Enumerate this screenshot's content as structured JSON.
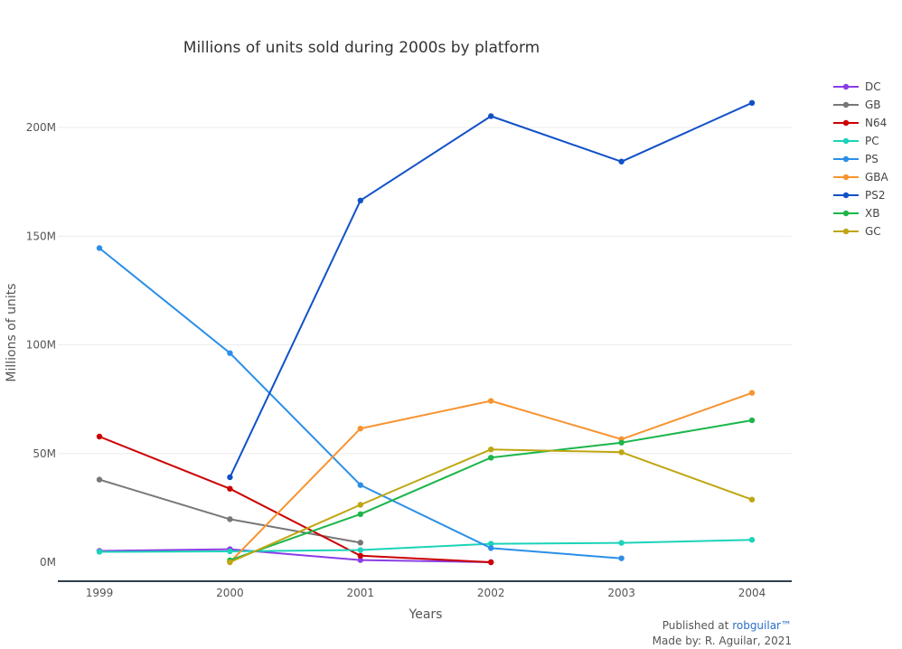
{
  "chart_data": {
    "type": "line",
    "title": "Millions of units sold during 2000s by platform",
    "xlabel": "Years",
    "ylabel": "Millions of units",
    "x": [
      1999,
      2000,
      2001,
      2002,
      2003,
      2004
    ],
    "x_tick_labels": [
      "1999",
      "2000",
      "2001",
      "2002",
      "2003",
      "2004"
    ],
    "ylim": [
      -8,
      225
    ],
    "y_ticks": [
      0,
      50,
      100,
      150,
      200
    ],
    "y_tick_labels": [
      "0M",
      "50M",
      "100M",
      "150M",
      "200M"
    ],
    "grid": true,
    "legend_position": "right",
    "series": [
      {
        "name": "DC",
        "color": "#8b3ee6",
        "points": [
          [
            1999,
            5.2
          ],
          [
            2000,
            6.0
          ],
          [
            2001,
            1.0
          ],
          [
            2002,
            0.0
          ]
        ]
      },
      {
        "name": "GB",
        "color": "#777777",
        "points": [
          [
            1999,
            38.0
          ],
          [
            2000,
            19.8
          ],
          [
            2001,
            9.0
          ]
        ]
      },
      {
        "name": "N64",
        "color": "#cc0000",
        "points": [
          [
            1999,
            57.8
          ],
          [
            2000,
            33.8
          ],
          [
            2001,
            3.0
          ],
          [
            2002,
            0.0
          ]
        ]
      },
      {
        "name": "PC",
        "color": "#1cd3b9",
        "points": [
          [
            1999,
            4.8
          ],
          [
            2000,
            5.0
          ],
          [
            2001,
            5.6
          ],
          [
            2002,
            8.5
          ],
          [
            2003,
            8.9
          ],
          [
            2004,
            10.3
          ]
        ]
      },
      {
        "name": "PS",
        "color": "#2b8fe8",
        "points": [
          [
            1999,
            144.5
          ],
          [
            2000,
            96.2
          ],
          [
            2001,
            35.5
          ],
          [
            2002,
            6.5
          ],
          [
            2003,
            1.8
          ]
        ]
      },
      {
        "name": "GBA",
        "color": "#f79431",
        "points": [
          [
            2000,
            0.0
          ],
          [
            2001,
            61.5
          ],
          [
            2002,
            74.2
          ],
          [
            2003,
            56.6
          ],
          [
            2004,
            77.9
          ]
        ]
      },
      {
        "name": "PS2",
        "color": "#1151c8",
        "points": [
          [
            2000,
            39.1
          ],
          [
            2001,
            166.4
          ],
          [
            2002,
            205.2
          ],
          [
            2003,
            184.3
          ],
          [
            2004,
            211.3
          ]
        ]
      },
      {
        "name": "XB",
        "color": "#1bb64a",
        "points": [
          [
            2000,
            0.9
          ],
          [
            2001,
            22.1
          ],
          [
            2002,
            48.1
          ],
          [
            2003,
            55.0
          ],
          [
            2004,
            65.3
          ]
        ]
      },
      {
        "name": "GC",
        "color": "#bfa612",
        "points": [
          [
            2000,
            0.0
          ],
          [
            2001,
            26.4
          ],
          [
            2002,
            51.9
          ],
          [
            2003,
            50.6
          ],
          [
            2004,
            28.8
          ]
        ]
      }
    ]
  },
  "credits": {
    "published_prefix": "Published at ",
    "published_link": "robguilar™",
    "made_by": "Made by: R. Aguilar, 2021"
  }
}
